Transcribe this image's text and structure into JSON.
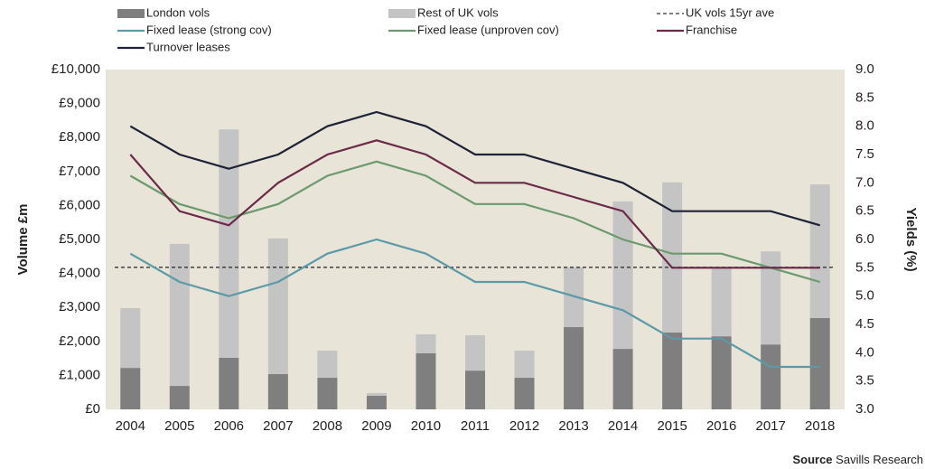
{
  "chart_data": {
    "type": "bar-line",
    "categories": [
      "2004",
      "2005",
      "2006",
      "2007",
      "2008",
      "2009",
      "2010",
      "2011",
      "2012",
      "2013",
      "2014",
      "2015",
      "2016",
      "2017",
      "2018"
    ],
    "ylabel": "Volume £m",
    "y2label": "Yields (%)",
    "ylim": [
      0,
      10000
    ],
    "yticks": [
      {
        "value": 0,
        "label": "£0"
      },
      {
        "value": 1000,
        "label": "£1,000"
      },
      {
        "value": 2000,
        "label": "£2,000"
      },
      {
        "value": 3000,
        "label": "£3,000"
      },
      {
        "value": 4000,
        "label": "£4,000"
      },
      {
        "value": 5000,
        "label": "£5,000"
      },
      {
        "value": 6000,
        "label": "£6,000"
      },
      {
        "value": 7000,
        "label": "£7,000"
      },
      {
        "value": 8000,
        "label": "£8,000"
      },
      {
        "value": 9000,
        "label": "£9,000"
      },
      {
        "value": 10000,
        "label": "£10,000"
      }
    ],
    "y2lim": [
      3,
      9
    ],
    "y2ticks": [
      {
        "value": 3,
        "label": "3.0"
      },
      {
        "value": 3.5,
        "label": "3.5"
      },
      {
        "value": 4,
        "label": "4.0"
      },
      {
        "value": 4.5,
        "label": "4.5"
      },
      {
        "value": 5,
        "label": "5.0"
      },
      {
        "value": 5.5,
        "label": "5.5"
      },
      {
        "value": 6,
        "label": "6.0"
      },
      {
        "value": 6.5,
        "label": "6.5"
      },
      {
        "value": 7,
        "label": "7.0"
      },
      {
        "value": 7.5,
        "label": "7.5"
      },
      {
        "value": 8,
        "label": "8.0"
      },
      {
        "value": 8.5,
        "label": "8.5"
      },
      {
        "value": 9,
        "label": "9.0"
      }
    ],
    "series": [
      {
        "name": "London vols",
        "type": "bar",
        "color": "#7f7f7f",
        "values": [
          1220,
          690,
          1520,
          1040,
          930,
          400,
          1650,
          1140,
          930,
          2420,
          1780,
          2260,
          2150,
          1910,
          2690
        ]
      },
      {
        "name": "Rest of UK vols",
        "type": "bar",
        "color": "#c4c4c4",
        "values": [
          1760,
          4180,
          6720,
          3990,
          800,
          80,
          560,
          1040,
          800,
          1760,
          4340,
          4420,
          2030,
          2740,
          3930
        ]
      },
      {
        "name": "Fixed lease (strong cov)",
        "type": "line",
        "axis": "y2",
        "color": "#5b9aa6",
        "values": [
          5.75,
          5.25,
          5.0,
          5.25,
          5.75,
          6.0,
          5.75,
          5.25,
          5.25,
          5.0,
          4.75,
          4.25,
          4.25,
          3.75,
          3.75
        ]
      },
      {
        "name": "Fixed lease (unproven cov)",
        "type": "line",
        "axis": "y2",
        "color": "#6a9a6e",
        "values": [
          7.125,
          6.625,
          6.375,
          6.625,
          7.125,
          7.375,
          7.125,
          6.625,
          6.625,
          6.375,
          6.0,
          5.75,
          5.75,
          5.5,
          5.25
        ]
      },
      {
        "name": "Franchise",
        "type": "line",
        "axis": "y2",
        "color": "#6b2a48",
        "values": [
          7.5,
          6.5,
          6.25,
          7.0,
          7.5,
          7.75,
          7.5,
          7.0,
          7.0,
          6.75,
          6.5,
          5.5,
          5.5,
          5.5,
          5.5
        ]
      },
      {
        "name": "Turnover leases",
        "type": "line",
        "axis": "y2",
        "color": "#1f2236",
        "values": [
          8.0,
          7.5,
          7.25,
          7.5,
          8.0,
          8.25,
          8.0,
          7.5,
          7.5,
          7.25,
          7.0,
          6.5,
          6.5,
          6.5,
          6.25
        ]
      }
    ],
    "reference_line": {
      "name": "UK vols 15yr ave",
      "value": 4180,
      "color": "#333333"
    },
    "plot_background": "#e8e4d8",
    "source_label": "Source",
    "source": "Savills Research"
  }
}
